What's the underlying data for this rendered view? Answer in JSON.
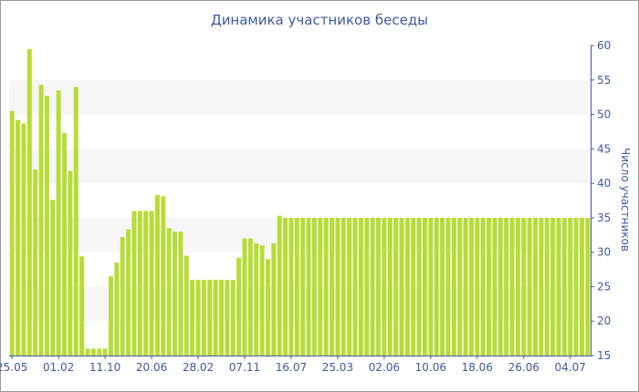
{
  "chart_data": {
    "type": "bar",
    "title": "Динамика участников беседы",
    "ylabel": "Число участников",
    "xlabel": "",
    "ylim": [
      15,
      60
    ],
    "yticks": [
      15,
      20,
      25,
      30,
      35,
      40,
      45,
      50,
      55,
      60
    ],
    "y_axis_side": "right",
    "grid": "alternating horizontal bands",
    "bar_color": "#b7dc37",
    "band_color": "#f6f6f6",
    "text_color": "#3d5a9e",
    "xtick_labels": [
      {
        "label": "25.05",
        "index": 0
      },
      {
        "label": "01.02",
        "index": 8
      },
      {
        "label": "11.10",
        "index": 16
      },
      {
        "label": "20.06",
        "index": 24
      },
      {
        "label": "28.02",
        "index": 32
      },
      {
        "label": "07.11",
        "index": 40
      },
      {
        "label": "16.07",
        "index": 48
      },
      {
        "label": "25.03",
        "index": 56
      },
      {
        "label": "02.06",
        "index": 64
      },
      {
        "label": "10.06",
        "index": 72
      },
      {
        "label": "18.06",
        "index": 80
      },
      {
        "label": "26.06",
        "index": 88
      },
      {
        "label": "04.07",
        "index": 96
      }
    ],
    "values": [
      50.5,
      49.2,
      48.7,
      59.5,
      42.0,
      54.3,
      52.7,
      37.6,
      53.5,
      47.3,
      41.8,
      54.0,
      29.4,
      16.0,
      16.0,
      16.0,
      16.0,
      26.5,
      28.5,
      32.2,
      33.3,
      36.0,
      36.0,
      36.0,
      36.0,
      38.3,
      38.1,
      33.5,
      33.0,
      33.0,
      29.5,
      26.0,
      26.0,
      26.0,
      26.0,
      26.0,
      26.0,
      26.0,
      26.0,
      29.2,
      32.0,
      32.0,
      31.3,
      31.0,
      29.0,
      31.3,
      35.3,
      35,
      35,
      35,
      35,
      35,
      35,
      35,
      35,
      35,
      35,
      35,
      35,
      35,
      35,
      35,
      35,
      35,
      35,
      35,
      35,
      35,
      35,
      35,
      35,
      35,
      35,
      35,
      35,
      35,
      35,
      35,
      35,
      35,
      35,
      35,
      35,
      35,
      35,
      35,
      35,
      35,
      35,
      35,
      35,
      35,
      35,
      35,
      35,
      35,
      35,
      35,
      35,
      35
    ]
  }
}
